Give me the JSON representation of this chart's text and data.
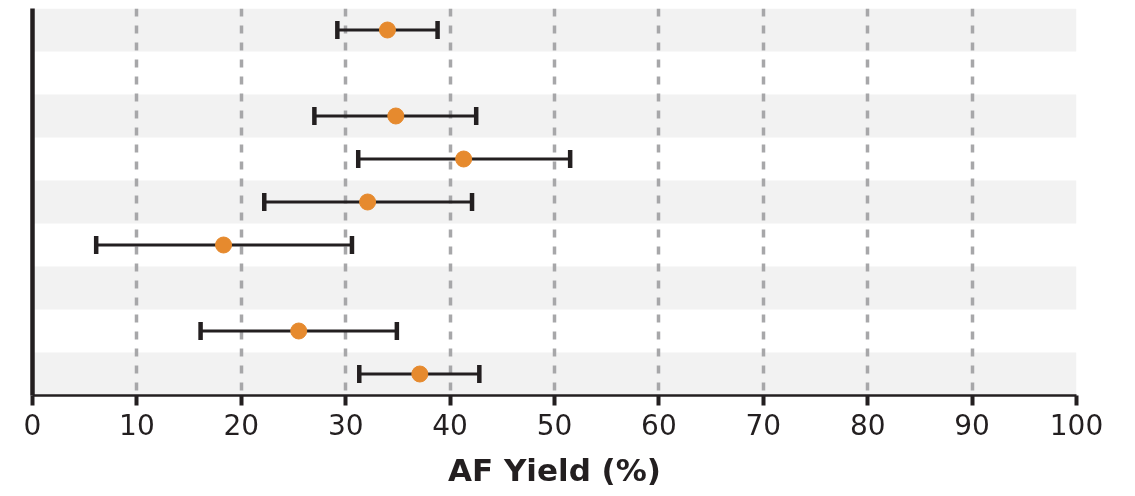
{
  "chart_data": {
    "type": "scatter",
    "orientation": "horizontal",
    "categories": [
      null,
      null,
      null,
      null,
      null,
      null,
      null,
      null,
      null
    ],
    "values": [
      34.0,
      null,
      34.8,
      41.3,
      32.1,
      18.3,
      null,
      25.5,
      37.1
    ],
    "errors": [
      [
        29.2,
        38.8
      ],
      null,
      [
        27.0,
        42.5
      ],
      [
        31.2,
        51.5
      ],
      [
        22.2,
        42.1
      ],
      [
        6.1,
        30.6
      ],
      null,
      [
        16.1,
        34.9
      ],
      [
        31.3,
        42.8
      ]
    ],
    "color": "#e68a2e",
    "marker": "circle",
    "xlabel": "AF Yield (%)",
    "xlim": [
      0,
      100
    ],
    "xticks": [
      0,
      10,
      20,
      30,
      40,
      50,
      60,
      70,
      80,
      90,
      100
    ],
    "grid": "x",
    "tick_labels": "x"
  }
}
